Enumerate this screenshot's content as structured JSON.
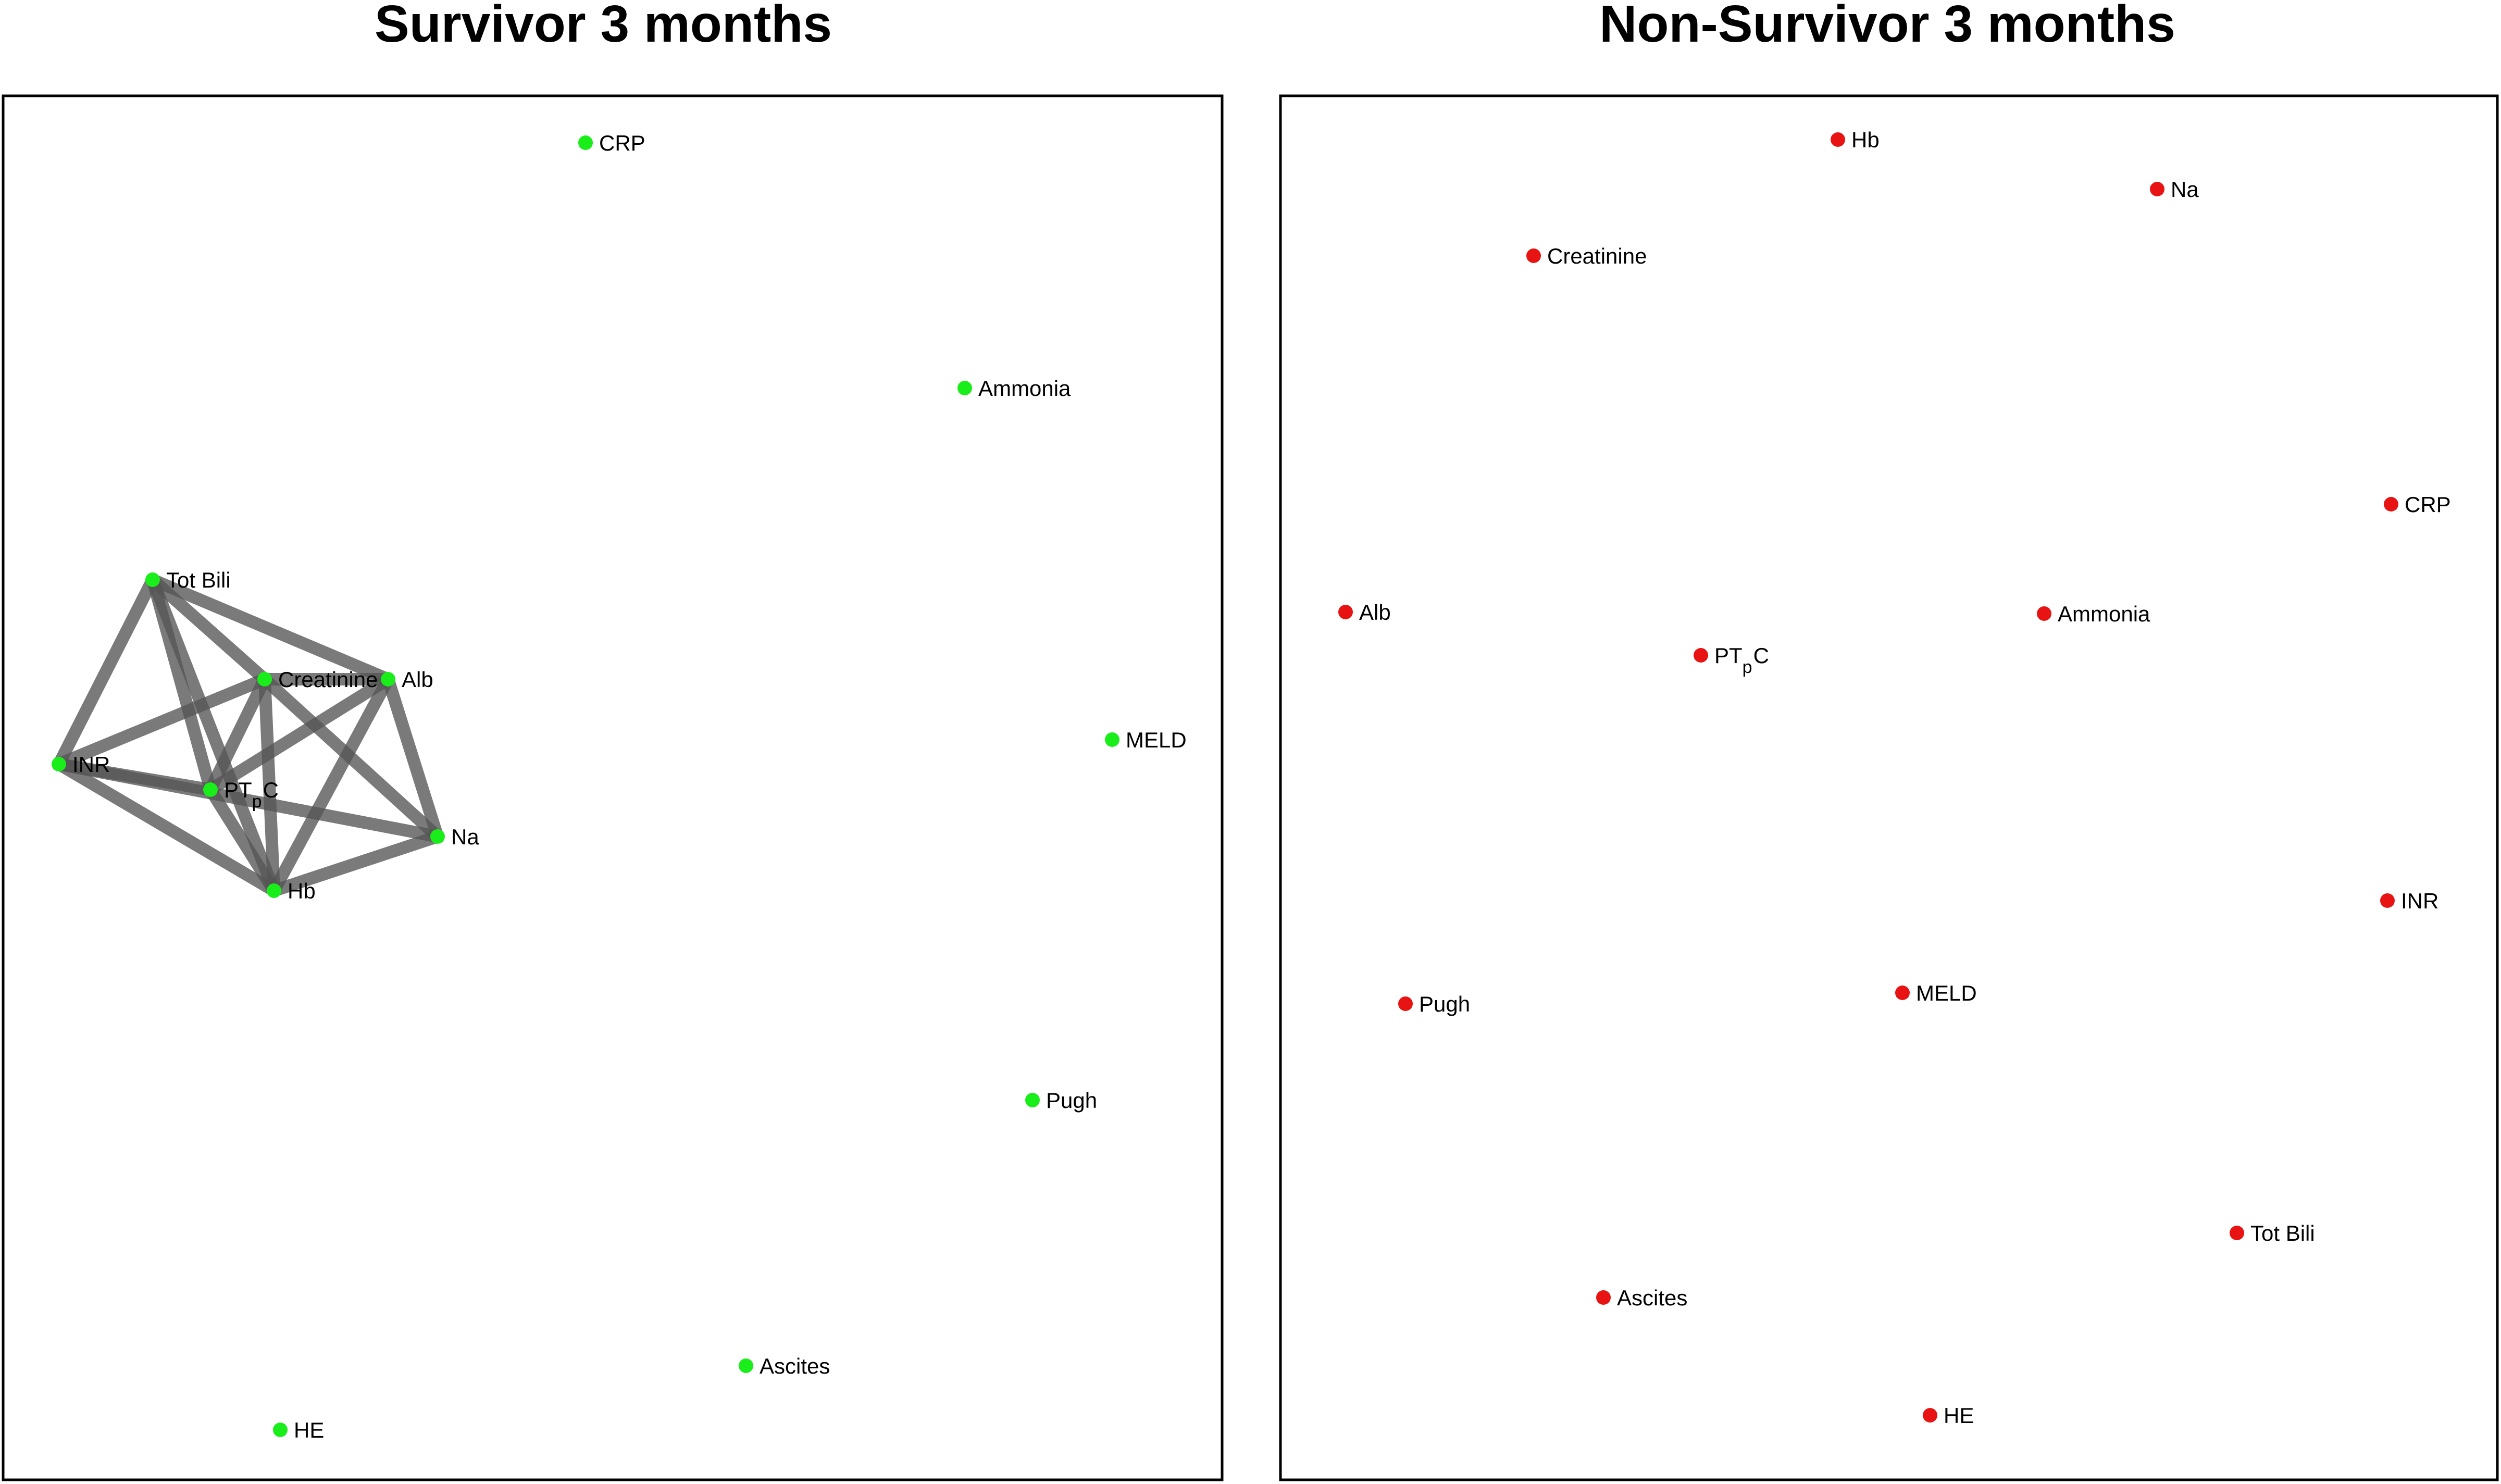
{
  "colors": {
    "survivor_node": "#1aee1a",
    "non_survivor_node": "#e81313",
    "edge": "#555555"
  },
  "panels": [
    {
      "id": "survivor",
      "title": "Survivor 3 months",
      "node_color_key": "survivor_node",
      "nodes": [
        {
          "id": "CRP",
          "label": "CRP"
        },
        {
          "id": "Ammonia",
          "label": "Ammonia"
        },
        {
          "id": "TotBili",
          "label": "Tot Bili"
        },
        {
          "id": "Creatinine",
          "label": "Creatinine"
        },
        {
          "id": "Alb",
          "label": "Alb"
        },
        {
          "id": "MELD",
          "label": "MELD"
        },
        {
          "id": "INR",
          "label": "INR"
        },
        {
          "id": "PTpC",
          "label": "PT",
          "sub": "p",
          "label_tail": "C"
        },
        {
          "id": "Na",
          "label": "Na"
        },
        {
          "id": "Hb",
          "label": "Hb"
        },
        {
          "id": "Pugh",
          "label": "Pugh"
        },
        {
          "id": "Ascites",
          "label": "Ascites"
        },
        {
          "id": "HE",
          "label": "HE"
        }
      ],
      "edges": [
        [
          "TotBili",
          "Creatinine"
        ],
        [
          "TotBili",
          "Alb"
        ],
        [
          "TotBili",
          "INR"
        ],
        [
          "TotBili",
          "PTpC"
        ],
        [
          "TotBili",
          "Hb"
        ],
        [
          "Creatinine",
          "Alb"
        ],
        [
          "Creatinine",
          "INR"
        ],
        [
          "Creatinine",
          "PTpC"
        ],
        [
          "Creatinine",
          "Hb"
        ],
        [
          "Creatinine",
          "Na"
        ],
        [
          "Alb",
          "PTpC"
        ],
        [
          "Alb",
          "Hb"
        ],
        [
          "Alb",
          "Na"
        ],
        [
          "INR",
          "PTpC"
        ],
        [
          "INR",
          "Hb"
        ],
        [
          "INR",
          "Na"
        ],
        [
          "PTpC",
          "Hb"
        ],
        [
          "Hb",
          "Na"
        ]
      ]
    },
    {
      "id": "non_survivor",
      "title": "Non-Survivor 3 months",
      "node_color_key": "non_survivor_node",
      "nodes": [
        {
          "id": "Hb",
          "label": "Hb"
        },
        {
          "id": "Na",
          "label": "Na"
        },
        {
          "id": "Creatinine",
          "label": "Creatinine"
        },
        {
          "id": "CRP",
          "label": "CRP"
        },
        {
          "id": "Alb",
          "label": "Alb"
        },
        {
          "id": "Ammonia",
          "label": "Ammonia"
        },
        {
          "id": "PTpC",
          "label": "PT",
          "sub": "p",
          "label_tail": "C"
        },
        {
          "id": "INR",
          "label": "INR"
        },
        {
          "id": "Pugh",
          "label": "Pugh"
        },
        {
          "id": "MELD",
          "label": "MELD"
        },
        {
          "id": "TotBili",
          "label": "Tot Bili"
        },
        {
          "id": "Ascites",
          "label": "Ascites"
        },
        {
          "id": "HE",
          "label": "HE"
        }
      ],
      "edges": []
    }
  ]
}
